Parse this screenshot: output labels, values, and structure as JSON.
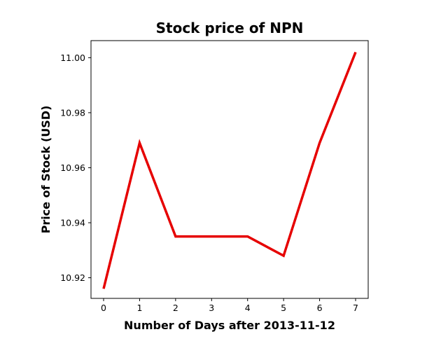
{
  "chart_data": {
    "type": "line",
    "title": "Stock price of NPN",
    "xlabel": "Number of Days after 2013-11-12",
    "ylabel": "Price of Stock (USD)",
    "x": [
      0,
      1,
      2,
      3,
      4,
      5,
      6,
      7
    ],
    "x_ticks": [
      "0",
      "1",
      "2",
      "3",
      "4",
      "5",
      "6",
      "7"
    ],
    "y_ticks": [
      "10.92",
      "10.94",
      "10.96",
      "10.98",
      "11.00"
    ],
    "y_tick_values": [
      10.92,
      10.94,
      10.96,
      10.98,
      11.0
    ],
    "xlim": [
      -0.35,
      7.35
    ],
    "ylim": [
      10.9125,
      11.0062
    ],
    "grid": false,
    "series": [
      {
        "values": [
          10.916,
          10.969,
          10.935,
          10.935,
          10.935,
          10.928,
          10.969,
          11.002
        ],
        "color": "#e60000"
      }
    ]
  }
}
